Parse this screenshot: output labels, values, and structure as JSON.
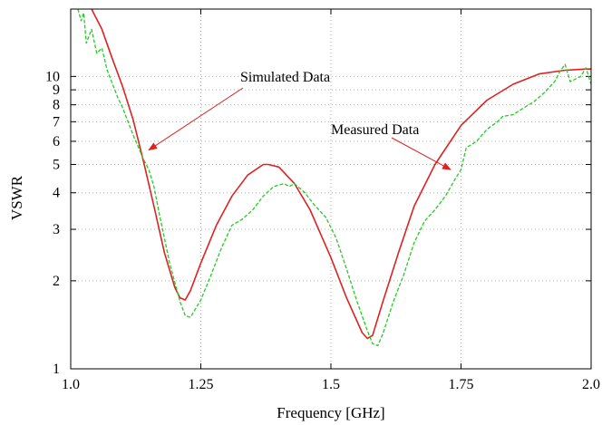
{
  "chart_data": {
    "type": "line",
    "title": "",
    "xlabel": "Frequency  [GHz]",
    "ylabel": "VSWR",
    "xlim": [
      1.0,
      2.0
    ],
    "ylim": [
      1,
      17
    ],
    "yscale": "log",
    "grid": true,
    "x_ticks": [
      {
        "value": 1.0,
        "label": "1.0"
      },
      {
        "value": 1.25,
        "label": "1.25"
      },
      {
        "value": 1.5,
        "label": "1.5"
      },
      {
        "value": 1.75,
        "label": "1.75"
      },
      {
        "value": 2.0,
        "label": "2.0"
      }
    ],
    "y_ticks": [
      {
        "value": 1,
        "label": "1"
      },
      {
        "value": 2,
        "label": "2"
      },
      {
        "value": 3,
        "label": "3"
      },
      {
        "value": 4,
        "label": "4"
      },
      {
        "value": 5,
        "label": "5"
      },
      {
        "value": 6,
        "label": "6"
      },
      {
        "value": 7,
        "label": "7"
      },
      {
        "value": 8,
        "label": "8"
      },
      {
        "value": 9,
        "label": "9"
      },
      {
        "value": 10,
        "label": "10"
      }
    ],
    "annotations": [
      {
        "text": "Simulated Data",
        "points_to": {
          "x": 1.15,
          "y": 5.6
        }
      },
      {
        "text": "Measured Data",
        "points_to": {
          "x": 1.73,
          "y": 4.8
        }
      }
    ],
    "series": [
      {
        "label": "Simulated Data",
        "color": "#dd2222",
        "style": "solid",
        "x": [
          1.04,
          1.06,
          1.08,
          1.1,
          1.12,
          1.14,
          1.16,
          1.18,
          1.2,
          1.21,
          1.22,
          1.23,
          1.25,
          1.28,
          1.31,
          1.34,
          1.37,
          1.38,
          1.4,
          1.43,
          1.46,
          1.5,
          1.53,
          1.56,
          1.57,
          1.58,
          1.6,
          1.63,
          1.66,
          1.7,
          1.75,
          1.8,
          1.85,
          1.9,
          1.95,
          1.99,
          2.0
        ],
        "y": [
          17.0,
          14.5,
          11.5,
          9.2,
          7.1,
          5.1,
          3.6,
          2.5,
          1.9,
          1.75,
          1.72,
          1.85,
          2.3,
          3.1,
          3.9,
          4.6,
          5.0,
          5.0,
          4.9,
          4.3,
          3.5,
          2.4,
          1.75,
          1.33,
          1.27,
          1.3,
          1.7,
          2.5,
          3.6,
          5.0,
          6.8,
          8.3,
          9.4,
          10.2,
          10.5,
          10.6,
          10.6
        ]
      },
      {
        "label": "Measured Data",
        "color": "#22cc22",
        "style": "dashed",
        "x": [
          1.0,
          1.01,
          1.02,
          1.025,
          1.03,
          1.04,
          1.05,
          1.06,
          1.07,
          1.09,
          1.1,
          1.12,
          1.14,
          1.15,
          1.16,
          1.17,
          1.19,
          1.21,
          1.22,
          1.23,
          1.25,
          1.27,
          1.29,
          1.31,
          1.33,
          1.35,
          1.37,
          1.39,
          1.41,
          1.42,
          1.43,
          1.45,
          1.47,
          1.49,
          1.51,
          1.53,
          1.55,
          1.57,
          1.58,
          1.59,
          1.6,
          1.62,
          1.64,
          1.66,
          1.68,
          1.7,
          1.72,
          1.74,
          1.75,
          1.76,
          1.78,
          1.8,
          1.82,
          1.83,
          1.85,
          1.87,
          1.89,
          1.91,
          1.93,
          1.94,
          1.95,
          1.96,
          1.98,
          1.99,
          2.0
        ],
        "y": [
          17.0,
          18.0,
          15.5,
          16.5,
          13.0,
          14.5,
          12.0,
          12.5,
          10.5,
          8.5,
          7.8,
          6.3,
          5.2,
          4.8,
          4.2,
          3.4,
          2.3,
          1.7,
          1.52,
          1.5,
          1.72,
          2.1,
          2.6,
          3.1,
          3.25,
          3.5,
          3.9,
          4.2,
          4.3,
          4.2,
          4.3,
          4.0,
          3.6,
          3.3,
          2.8,
          2.2,
          1.7,
          1.35,
          1.22,
          1.2,
          1.32,
          1.7,
          2.1,
          2.7,
          3.2,
          3.5,
          3.9,
          4.5,
          4.8,
          5.7,
          6.0,
          6.6,
          7.0,
          7.3,
          7.4,
          7.8,
          8.2,
          8.8,
          9.6,
          10.4,
          11.0,
          9.6,
          10.0,
          10.7,
          9.4
        ]
      }
    ]
  }
}
